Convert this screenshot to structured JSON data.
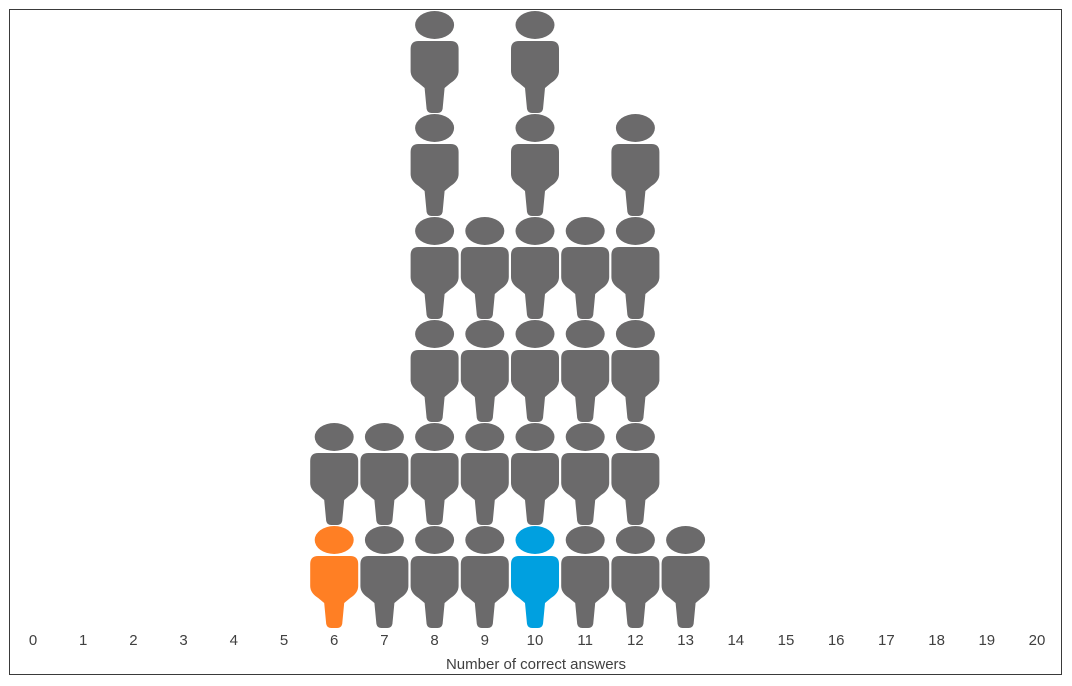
{
  "chart_data": {
    "type": "pictogram",
    "xlabel": "Number of correct answers",
    "x_ticks": [
      0,
      1,
      2,
      3,
      4,
      5,
      6,
      7,
      8,
      9,
      10,
      11,
      12,
      13,
      14,
      15,
      16,
      17,
      18,
      19,
      20
    ],
    "counts": [
      {
        "x": 6,
        "value": 2
      },
      {
        "x": 7,
        "value": 2
      },
      {
        "x": 8,
        "value": 6
      },
      {
        "x": 9,
        "value": 4
      },
      {
        "x": 10,
        "value": 6
      },
      {
        "x": 11,
        "value": 4
      },
      {
        "x": 12,
        "value": 5
      },
      {
        "x": 13,
        "value": 1
      }
    ],
    "highlights": [
      {
        "x": 6,
        "color": "#ff7f24"
      },
      {
        "x": 10,
        "color": "#00a0e0"
      }
    ],
    "colors": {
      "person": "#6b6a6b",
      "text": "#404040"
    }
  }
}
